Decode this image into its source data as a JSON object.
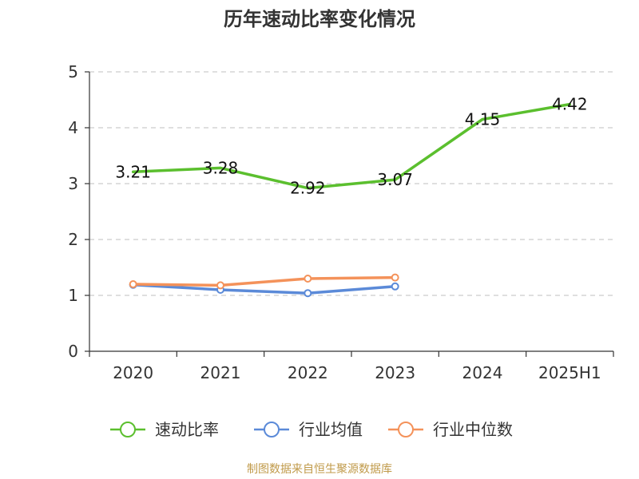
{
  "chart_data": {
    "type": "line",
    "title": "历年速动比率变化情况",
    "categories": [
      "2020",
      "2021",
      "2022",
      "2023",
      "2024",
      "2025H1"
    ],
    "ylim": [
      0,
      5
    ],
    "yticks": [
      "0",
      "1",
      "2",
      "3",
      "4",
      "5"
    ],
    "grid": true,
    "legend_position": "bottom",
    "series": [
      {
        "name": "速动比率",
        "color": "#5bbf2e",
        "values": [
          3.21,
          3.28,
          2.92,
          3.07,
          4.15,
          4.42
        ],
        "labels": [
          "3.21",
          "3.28",
          "2.92",
          "3.07",
          "4.15",
          "4.42"
        ]
      },
      {
        "name": "行业均值",
        "color": "#5b8ad8",
        "values": [
          1.19,
          1.1,
          1.04,
          1.16,
          null,
          null
        ]
      },
      {
        "name": "行业中位数",
        "color": "#f4925a",
        "values": [
          1.2,
          1.18,
          1.3,
          1.32,
          null,
          null
        ]
      }
    ],
    "source": "制图数据来自恒生聚源数据库"
  }
}
